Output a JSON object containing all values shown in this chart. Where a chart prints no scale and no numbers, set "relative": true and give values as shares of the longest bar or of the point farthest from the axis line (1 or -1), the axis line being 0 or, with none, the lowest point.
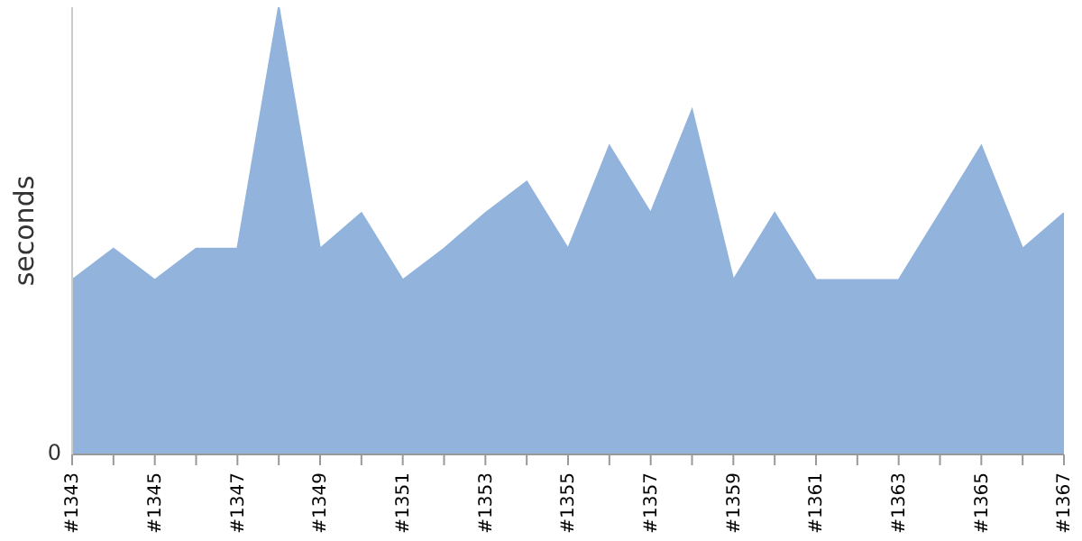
{
  "chart_data": {
    "type": "area",
    "ylabel": "seconds",
    "relative": true,
    "annotations": [
      "0"
    ],
    "categories": [
      "#1343",
      null,
      "#1345",
      null,
      "#1347",
      null,
      "#1349",
      null,
      "#1351",
      null,
      "#1353",
      null,
      "#1355",
      null,
      "#1357",
      null,
      "#1359",
      null,
      "#1361",
      null,
      "#1363",
      null,
      "#1365",
      null,
      "#1367"
    ],
    "values": [
      0.39,
      0.46,
      0.39,
      0.46,
      0.46,
      1,
      0.46,
      0.54,
      0.39,
      0.46,
      0.54,
      0.61,
      0.46,
      0.69,
      0.54,
      0.77,
      0.39,
      0.54,
      0.39,
      0.39,
      0.39,
      0.54,
      0.69,
      0.46,
      0.54
    ],
    "color": "#92b3dc",
    "grid": false,
    "legend": false
  }
}
